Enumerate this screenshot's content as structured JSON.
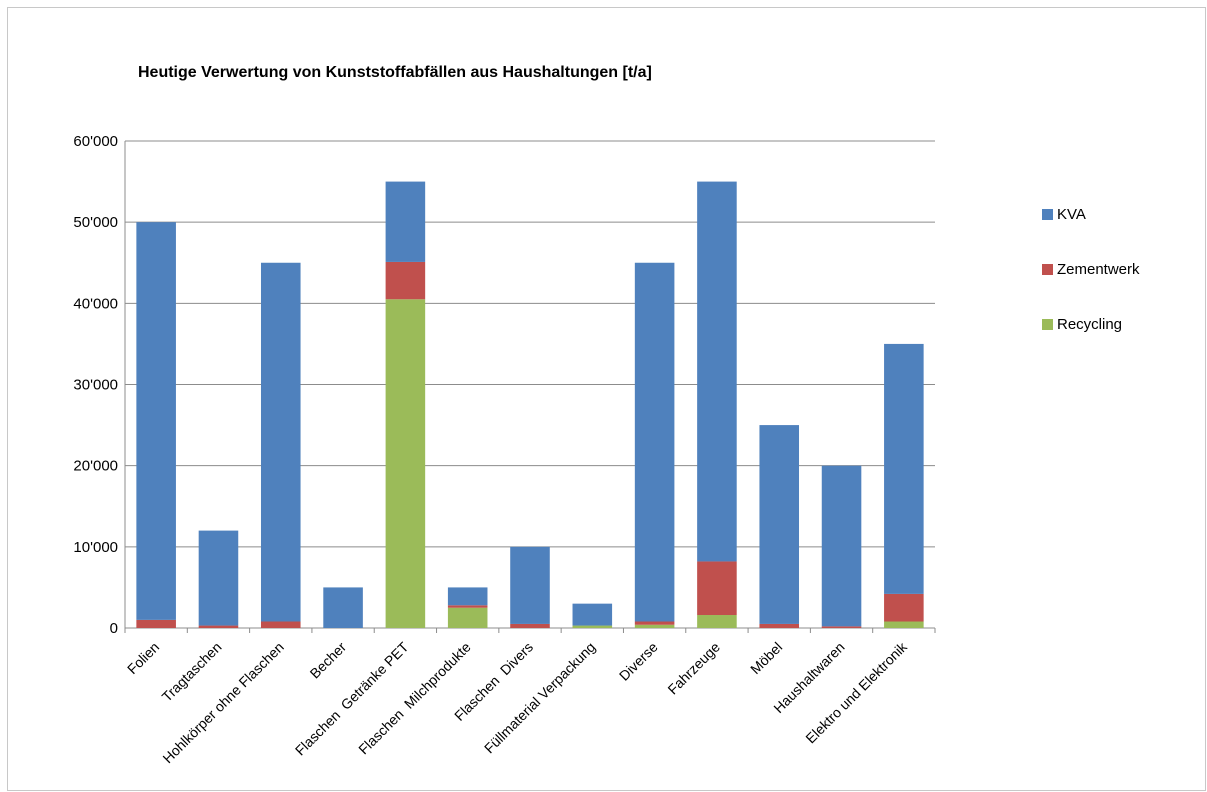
{
  "chart_data": {
    "type": "bar",
    "stacked": true,
    "title": "Heutige Verwertung von Kunststoffabfällen aus Haushaltungen [t/a]",
    "xlabel": "",
    "ylabel": "",
    "ylim": [
      0,
      60000
    ],
    "yticks": [
      0,
      10000,
      20000,
      30000,
      40000,
      50000,
      60000
    ],
    "ytick_labels": [
      "0",
      "10'000",
      "20'000",
      "30'000",
      "40'000",
      "50'000",
      "60'000"
    ],
    "grid": true,
    "legend_position": "right",
    "categories": [
      "Folien",
      "Tragtaschen",
      "Hohlkörper ohne Flaschen",
      "Becher",
      "Flaschen  Getränke PET",
      "Flaschen  Milchprodukte",
      "Flaschen  Divers",
      "Füllmaterial Verpackung",
      "Diverse",
      "Fahrzeuge",
      "Möbel",
      "Haushaltwaren",
      "Elektro und Elektronik"
    ],
    "series": [
      {
        "name": "Recycling",
        "color": "#9bbb59",
        "values": [
          0,
          0,
          0,
          0,
          40500,
          2500,
          0,
          300,
          400,
          1600,
          0,
          0,
          800
        ]
      },
      {
        "name": "Zementwerk",
        "color": "#c0504d",
        "values": [
          1000,
          300,
          800,
          0,
          4600,
          300,
          500,
          0,
          400,
          6600,
          500,
          200,
          3400
        ]
      },
      {
        "name": "KVA",
        "color": "#4f81bd",
        "values": [
          49000,
          11700,
          44200,
          5000,
          9900,
          2200,
          9500,
          2700,
          44200,
          46800,
          24500,
          19800,
          30800
        ]
      }
    ]
  }
}
